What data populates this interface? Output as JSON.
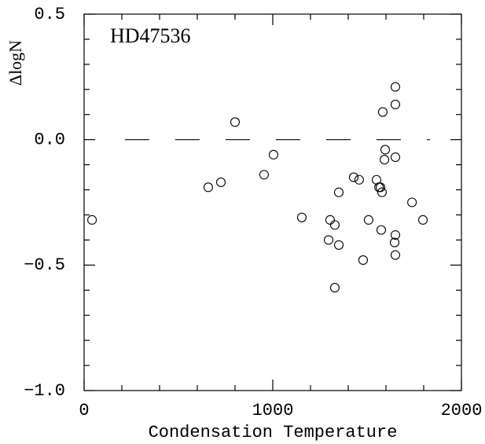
{
  "chart_data": {
    "type": "scatter",
    "annotation": "HD47536",
    "x_label": "Condensation   Temperature",
    "y_label": "ΔlogN",
    "x": [
      42,
      658,
      725,
      800,
      954,
      1004,
      1154,
      1296,
      1304,
      1329,
      1329,
      1350,
      1350,
      1429,
      1458,
      1479,
      1508,
      1550,
      1563,
      1571,
      1575,
      1579,
      1583,
      1592,
      1596,
      1650,
      1650,
      1650,
      1650,
      1646,
      1650,
      1738,
      1796
    ],
    "series": [
      {
        "color": "#000000",
        "values": [
          -0.32,
          -0.19,
          -0.17,
          0.07,
          -0.14,
          -0.06,
          -0.31,
          -0.4,
          -0.32,
          -0.59,
          -0.34,
          -0.42,
          -0.21,
          -0.15,
          -0.16,
          -0.48,
          -0.32,
          -0.16,
          -0.19,
          -0.19,
          -0.36,
          -0.21,
          0.11,
          -0.08,
          -0.04,
          0.21,
          0.14,
          -0.07,
          -0.38,
          -0.41,
          -0.46,
          -0.25,
          -0.32
        ]
      }
    ],
    "reference_line": {
      "value": 0,
      "xlim": [
        108,
        1833
      ]
    },
    "xlim": [
      0,
      2000
    ],
    "xticks": [
      0,
      1000,
      2000
    ],
    "xminorticks": [
      200,
      400,
      600,
      800,
      1200,
      1400,
      1600,
      1800
    ],
    "ylim": [
      -1.0,
      0.5
    ],
    "yticks": [
      {
        "value": -1.0,
        "label": "−1.0"
      },
      {
        "value": -0.5,
        "label": "−0.5"
      },
      {
        "value": 0,
        "label": "0.0"
      },
      0.5
    ],
    "yminorticks": [
      -0.9,
      -0.8,
      -0.7,
      -0.6,
      -0.4,
      -0.3,
      -0.2,
      -0.1,
      0.1,
      0.2,
      0.3,
      0.4
    ]
  }
}
